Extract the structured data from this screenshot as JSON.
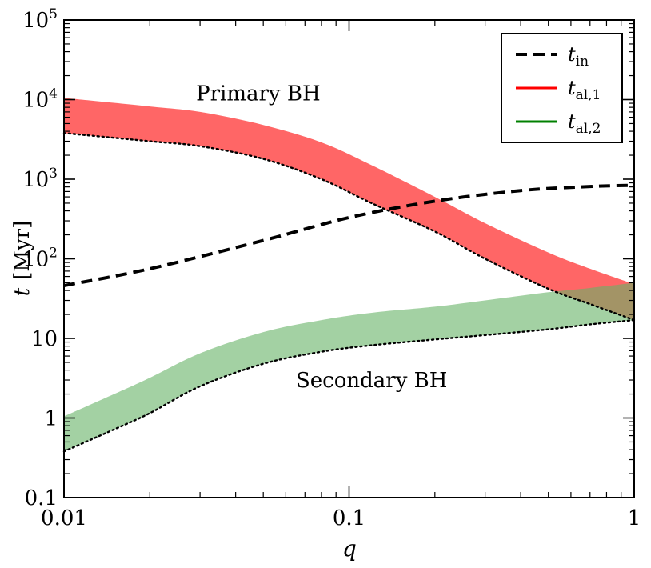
{
  "chart_data": {
    "type": "area",
    "title": "",
    "xlabel": "q",
    "ylabel_symbol": "t",
    "ylabel_unit": "[Myr]",
    "xscale": "log",
    "yscale": "log",
    "xlim": [
      0.01,
      1
    ],
    "ylim": [
      0.1,
      100000
    ],
    "x_ticks": [
      {
        "value": 0.01,
        "label": "0.01"
      },
      {
        "value": 0.1,
        "label": "0.1"
      },
      {
        "value": 1,
        "label": "1"
      }
    ],
    "y_ticks": [
      {
        "value": 0.1,
        "label": "0.1"
      },
      {
        "value": 1,
        "label": "1"
      },
      {
        "value": 10,
        "label": "10"
      },
      {
        "value": 100,
        "label": "10",
        "exp": "2"
      },
      {
        "value": 1000,
        "label": "10",
        "exp": "3"
      },
      {
        "value": 10000,
        "label": "10",
        "exp": "4"
      },
      {
        "value": 100000,
        "label": "10",
        "exp": "5"
      }
    ],
    "series": [
      {
        "name": "t_in",
        "legend_base": "t",
        "legend_sub": "in",
        "style": "dashed",
        "color": "#000000",
        "x": [
          0.01,
          0.02,
          0.05,
          0.1,
          0.2,
          0.4,
          0.7,
          1.0
        ],
        "y": [
          46,
          75,
          170,
          330,
          530,
          720,
          810,
          840
        ]
      },
      {
        "name": "t_al,1",
        "legend_base": "t",
        "legend_sub": "al,1",
        "style": "band",
        "color": "#ff0000",
        "fill": "#ff6666",
        "x": [
          0.01,
          0.02,
          0.03,
          0.05,
          0.08,
          0.12,
          0.2,
          0.3,
          0.5,
          0.7,
          1.0
        ],
        "y_upper": [
          10500,
          8200,
          7000,
          4800,
          2900,
          1500,
          600,
          280,
          120,
          75,
          48
        ],
        "y_lower": [
          3800,
          3000,
          2600,
          1800,
          1000,
          500,
          220,
          100,
          42,
          27,
          17
        ]
      },
      {
        "name": "t_al,2",
        "legend_base": "t",
        "legend_sub": "al,2",
        "style": "band",
        "color": "#008000",
        "fill": "#66b266",
        "x": [
          0.01,
          0.015,
          0.02,
          0.03,
          0.05,
          0.08,
          0.12,
          0.2,
          0.3,
          0.5,
          0.7,
          1.0
        ],
        "y_upper": [
          1.05,
          2.0,
          3.2,
          6.5,
          12,
          17,
          21,
          25,
          30,
          38,
          43,
          50
        ],
        "y_lower": [
          0.38,
          0.72,
          1.15,
          2.5,
          4.8,
          6.8,
          8.2,
          9.7,
          11,
          13,
          15,
          17
        ]
      }
    ],
    "annotations": [
      {
        "text": "Primary BH",
        "q": 0.048,
        "t": 12000
      },
      {
        "text": "Secondary BH",
        "q": 0.12,
        "t": 3.0
      }
    ],
    "legend_position": "top-right"
  }
}
